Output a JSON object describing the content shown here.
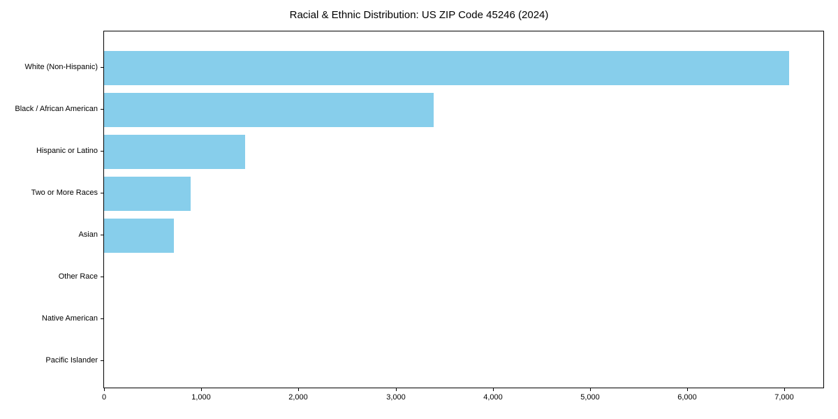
{
  "chart_data": {
    "type": "bar",
    "orientation": "horizontal",
    "title": "Racial & Ethnic Distribution: US ZIP Code 45246 (2024)",
    "categories": [
      "White (Non-Hispanic)",
      "Black / African American",
      "Hispanic or Latino",
      "Two or More Races",
      "Asian",
      "Other Race",
      "Native American",
      "Pacific Islander"
    ],
    "values": [
      7050,
      3390,
      1450,
      890,
      720,
      0,
      0,
      0
    ],
    "bar_color": "#87CEEB",
    "xlabel": "",
    "ylabel": "",
    "xlim": [
      0,
      7400
    ],
    "xticks": [
      0,
      1000,
      2000,
      3000,
      4000,
      5000,
      6000,
      7000
    ],
    "xtick_labels": [
      "0",
      "1,000",
      "2,000",
      "3,000",
      "4,000",
      "5,000",
      "6,000",
      "7,000"
    ],
    "grid": false,
    "legend_position": "none"
  }
}
